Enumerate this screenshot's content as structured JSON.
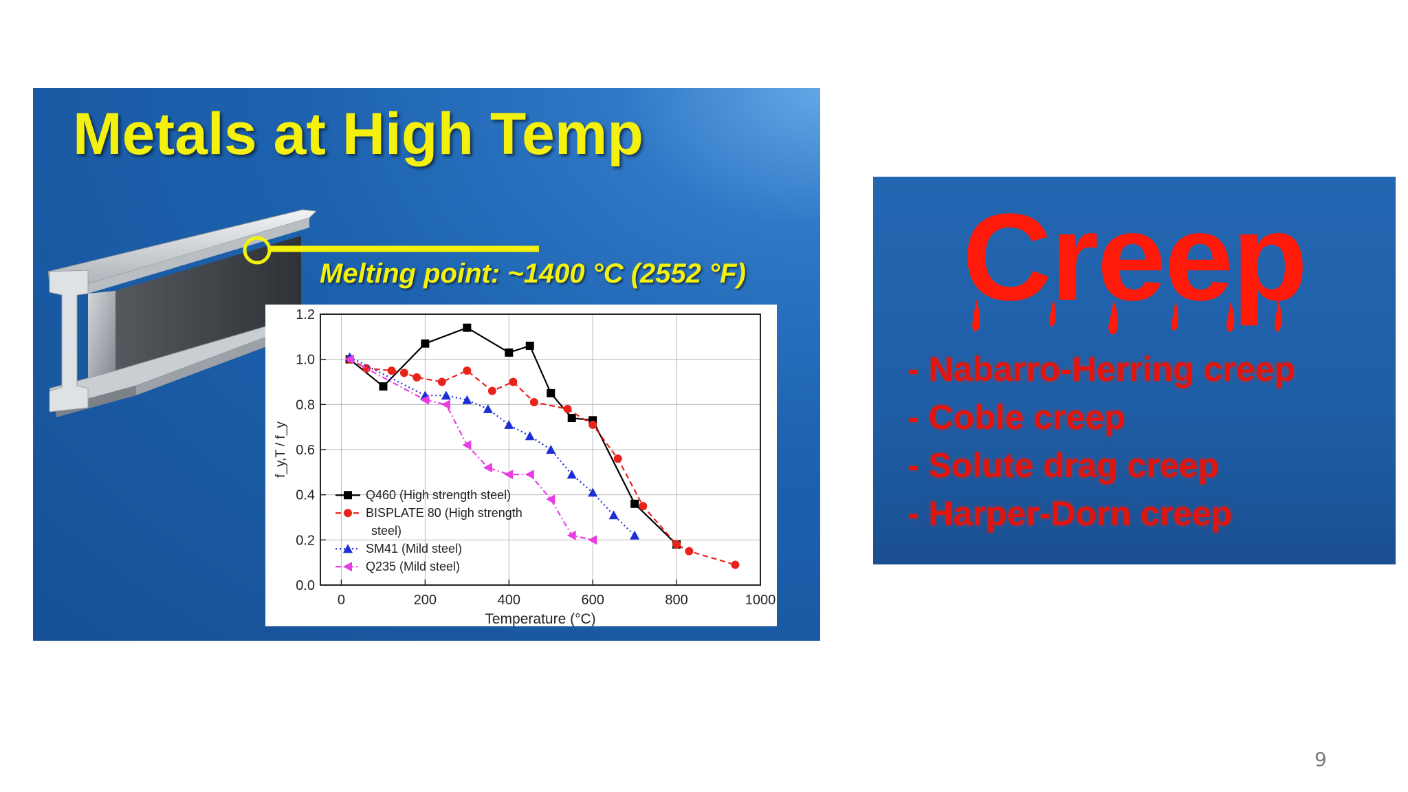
{
  "left_slide": {
    "title": "Metals at High Temp",
    "melting_note": "Melting point: ~1400 °C (2552 °F)"
  },
  "right_slide": {
    "title": "Creep",
    "items": [
      "- Nabarro-Herring creep",
      "- Coble creep",
      "- Solute drag creep",
      "- Harper-Dorn creep"
    ]
  },
  "page_number": "9",
  "chart_data": {
    "type": "line",
    "title": "",
    "xlabel": "Temperature (°C)",
    "ylabel": "f_y,T / f_y",
    "xlim": [
      -50,
      1000
    ],
    "ylim": [
      0,
      1.2
    ],
    "xticks": [
      0,
      200,
      400,
      600,
      800,
      1000
    ],
    "yticks": [
      0.0,
      0.2,
      0.4,
      0.6,
      0.8,
      1.0,
      1.2
    ],
    "xtick_labels": [
      "0",
      "200",
      "400",
      "600",
      "800",
      "1000"
    ],
    "ytick_labels": [
      "0.0",
      "0.2",
      "0.4",
      "0.6",
      "0.8",
      "1.0",
      "1.2"
    ],
    "grid": true,
    "legend_position": "bottom-left",
    "series": [
      {
        "name": "Q460 (High strength steel)",
        "color": "#000000",
        "marker": "square",
        "dash": "solid",
        "x": [
          20,
          100,
          200,
          300,
          400,
          450,
          500,
          550,
          600,
          700,
          800
        ],
        "y": [
          1.0,
          0.88,
          1.07,
          1.14,
          1.03,
          1.06,
          0.85,
          0.74,
          0.73,
          0.36,
          0.18
        ]
      },
      {
        "name": "BISPLATE 80 (High strength steel)",
        "color": "#e8231c",
        "marker": "circle",
        "dash": "dashed",
        "x": [
          20,
          60,
          120,
          150,
          180,
          240,
          300,
          360,
          410,
          460,
          540,
          600,
          660,
          720,
          800,
          830,
          940
        ],
        "y": [
          1.0,
          0.96,
          0.95,
          0.94,
          0.92,
          0.9,
          0.95,
          0.86,
          0.9,
          0.81,
          0.78,
          0.71,
          0.56,
          0.35,
          0.18,
          0.15,
          0.09
        ]
      },
      {
        "name": "SM41 (Mild steel)",
        "color": "#1c2fd6",
        "marker": "triangle-up",
        "dash": "dotted",
        "x": [
          20,
          200,
          250,
          300,
          350,
          400,
          450,
          500,
          550,
          600,
          650,
          700
        ],
        "y": [
          1.01,
          0.84,
          0.84,
          0.82,
          0.78,
          0.71,
          0.66,
          0.6,
          0.49,
          0.41,
          0.31,
          0.22
        ]
      },
      {
        "name": "Q235 (Mild steel)",
        "color": "#e83de0",
        "marker": "triangle-left",
        "dash": "dashdot",
        "x": [
          20,
          200,
          250,
          300,
          350,
          400,
          450,
          500,
          550,
          600
        ],
        "y": [
          1.0,
          0.82,
          0.8,
          0.62,
          0.52,
          0.49,
          0.49,
          0.38,
          0.22,
          0.2
        ]
      }
    ]
  }
}
